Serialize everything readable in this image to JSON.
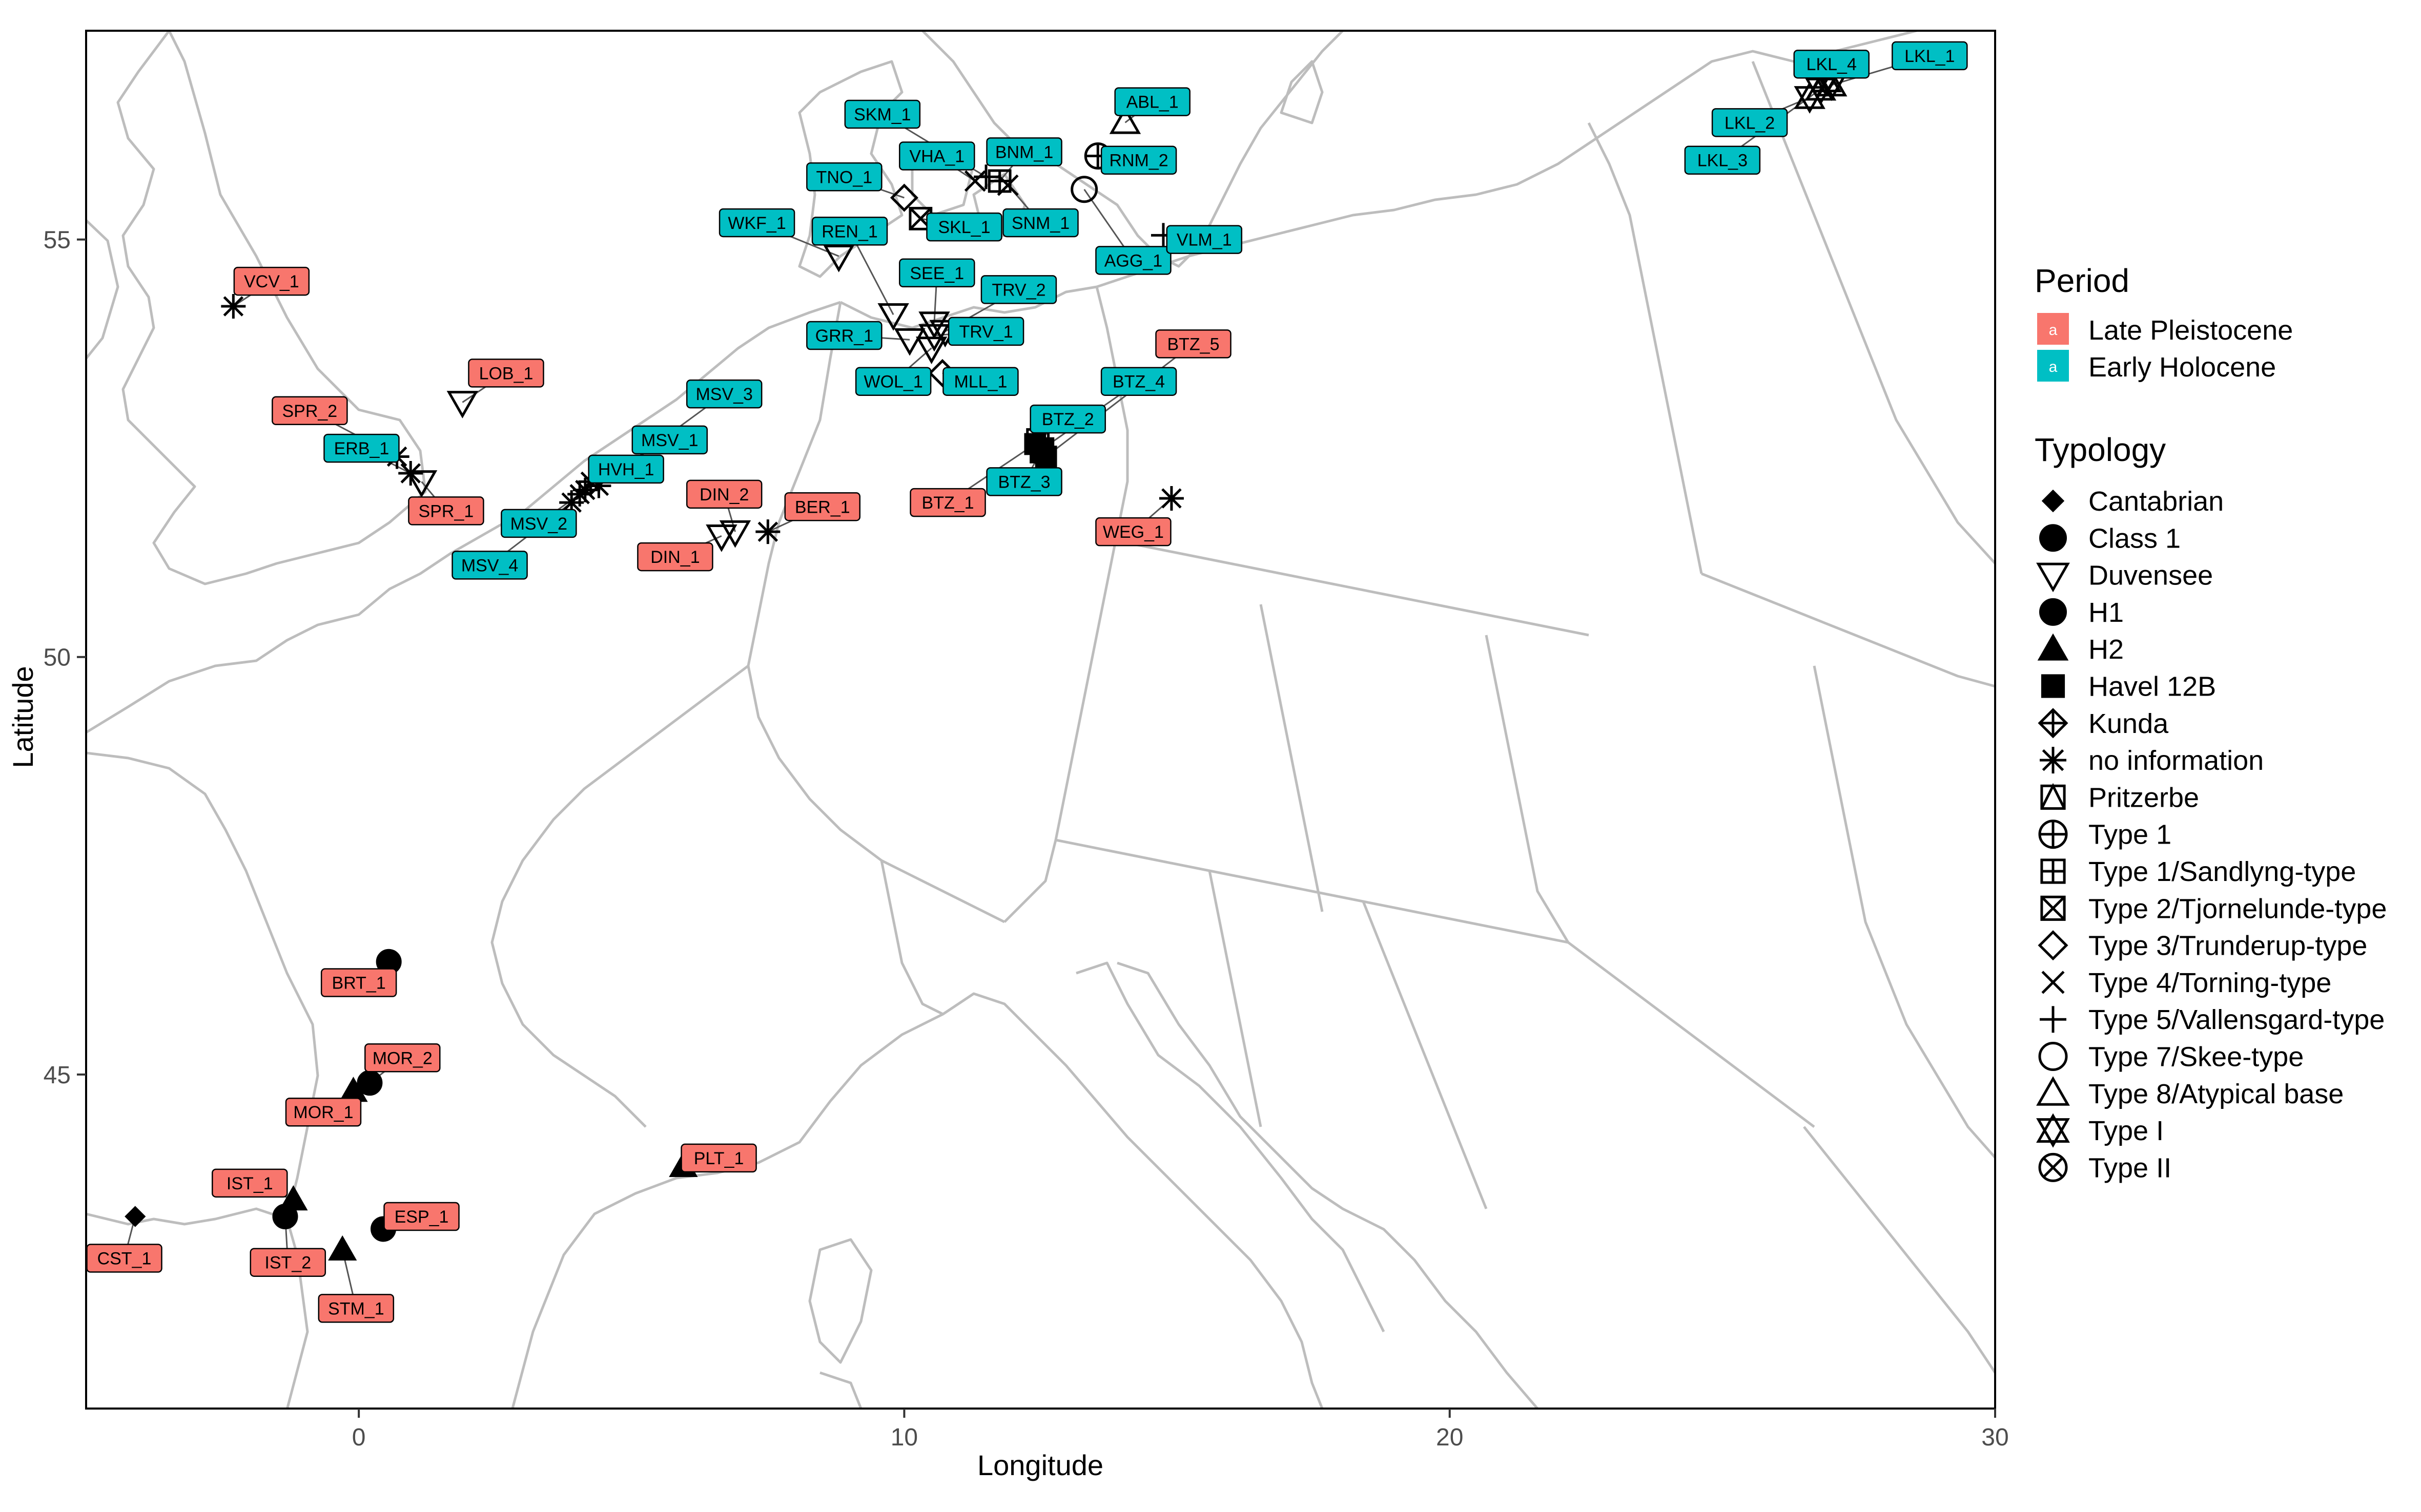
{
  "chart_data": {
    "type": "scatter",
    "xlabel": "Longitude",
    "ylabel": "Latitude",
    "xlim": [
      -5,
      30
    ],
    "ylim": [
      41,
      57.5
    ],
    "xticks": [
      0,
      10,
      20,
      30
    ],
    "yticks": [
      45,
      50,
      55
    ],
    "grid": false,
    "legend_position": "right",
    "periods": [
      {
        "name": "Late Pleistocene",
        "color": "#F8766D",
        "key_letter": "a"
      },
      {
        "name": "Early Holocene",
        "color": "#00BFC4",
        "key_letter": "a"
      }
    ],
    "typology_title": "Typology",
    "period_title": "Period",
    "typologies": [
      {
        "name": "Cantabrian",
        "shape": "diamond-filled"
      },
      {
        "name": "Class 1",
        "shape": "circle-filled"
      },
      {
        "name": "Duvensee",
        "shape": "triangle-down-open"
      },
      {
        "name": "H1",
        "shape": "circle-filled"
      },
      {
        "name": "H2",
        "shape": "triangle-filled"
      },
      {
        "name": "Havel 12B",
        "shape": "square-filled"
      },
      {
        "name": "Kunda",
        "shape": "diamond-plus"
      },
      {
        "name": "no information",
        "shape": "asterisk"
      },
      {
        "name": "Pritzerbe",
        "shape": "square-triangle"
      },
      {
        "name": "Type 1",
        "shape": "circle-plus"
      },
      {
        "name": "Type 1/Sandlyng-type",
        "shape": "square-plus"
      },
      {
        "name": "Type 2/Tjornelunde-type",
        "shape": "square-cross"
      },
      {
        "name": "Type 3/Trunderup-type",
        "shape": "diamond-open"
      },
      {
        "name": "Type 4/Torning-type",
        "shape": "cross"
      },
      {
        "name": "Type 5/Vallensgard-type",
        "shape": "plus"
      },
      {
        "name": "Type 7/Skee-type",
        "shape": "circle-open"
      },
      {
        "name": "Type 8/Atypical base",
        "shape": "triangle-open"
      },
      {
        "name": "Type I",
        "shape": "star-of-david"
      },
      {
        "name": "Type II",
        "shape": "circle-cross"
      }
    ],
    "sites": [
      {
        "label": "CST_1",
        "period": "Late Pleistocene",
        "typology": "Cantabrian",
        "lon": -4.1,
        "lat": 43.3,
        "label_lon": -4.3,
        "label_lat": 42.8
      },
      {
        "label": "IST_1",
        "period": "Late Pleistocene",
        "typology": "H2",
        "lon": -1.2,
        "lat": 43.5,
        "label_lon": -2.0,
        "label_lat": 43.7
      },
      {
        "label": "IST_2",
        "period": "Late Pleistocene",
        "typology": "H1",
        "lon": -1.35,
        "lat": 43.3,
        "label_lon": -1.3,
        "label_lat": 42.75
      },
      {
        "label": "STM_1",
        "period": "Late Pleistocene",
        "typology": "H2",
        "lon": -0.3,
        "lat": 42.9,
        "label_lon": -0.05,
        "label_lat": 42.2
      },
      {
        "label": "ESP_1",
        "period": "Late Pleistocene",
        "typology": "H1",
        "lon": 0.45,
        "lat": 43.15,
        "label_lon": 1.15,
        "label_lat": 43.3
      },
      {
        "label": "MOR_1",
        "period": "Late Pleistocene",
        "typology": "H2",
        "lon": -0.1,
        "lat": 44.8,
        "label_lon": -0.65,
        "label_lat": 44.55
      },
      {
        "label": "MOR_2",
        "period": "Late Pleistocene",
        "typology": "H1",
        "lon": 0.2,
        "lat": 44.9,
        "label_lon": 0.8,
        "label_lat": 45.2
      },
      {
        "label": "BRT_1",
        "period": "Late Pleistocene",
        "typology": "Class 1",
        "lon": 0.55,
        "lat": 46.35,
        "label_lon": 0.0,
        "label_lat": 46.1
      },
      {
        "label": "PLT_1",
        "period": "Late Pleistocene",
        "typology": "H2",
        "lon": 5.95,
        "lat": 43.9,
        "label_lon": 6.6,
        "label_lat": 44.0
      },
      {
        "label": "VCV_1",
        "period": "Late Pleistocene",
        "typology": "no information",
        "lon": -2.3,
        "lat": 54.2,
        "label_lon": -1.6,
        "label_lat": 54.5
      },
      {
        "label": "LOB_1",
        "period": "Late Pleistocene",
        "typology": "Duvensee",
        "lon": 1.9,
        "lat": 53.05,
        "label_lon": 2.7,
        "label_lat": 53.4
      },
      {
        "label": "SPR_2",
        "period": "Late Pleistocene",
        "typology": "no information",
        "lon": 0.7,
        "lat": 52.4,
        "label_lon": -0.9,
        "label_lat": 52.95
      },
      {
        "label": "SPR_1",
        "period": "Late Pleistocene",
        "typology": "Duvensee",
        "lon": 1.15,
        "lat": 52.1,
        "label_lon": 1.6,
        "label_lat": 51.75
      },
      {
        "label": "DIN_2",
        "period": "Late Pleistocene",
        "typology": "Duvensee",
        "lon": 6.9,
        "lat": 51.5,
        "label_lon": 6.7,
        "label_lat": 51.95
      },
      {
        "label": "DIN_1",
        "period": "Late Pleistocene",
        "typology": "Duvensee",
        "lon": 6.65,
        "lat": 51.45,
        "label_lon": 5.8,
        "label_lat": 51.2
      },
      {
        "label": "BER_1",
        "period": "Late Pleistocene",
        "typology": "no information",
        "lon": 7.5,
        "lat": 51.5,
        "label_lon": 8.5,
        "label_lat": 51.8
      },
      {
        "label": "BTZ_1",
        "period": "Late Pleistocene",
        "typology": "Havel 12B",
        "lon": 12.4,
        "lat": 52.55,
        "label_lon": 10.8,
        "label_lat": 51.85
      },
      {
        "label": "BTZ_5",
        "period": "Late Pleistocene",
        "typology": "Havel 12B",
        "lon": 12.6,
        "lat": 52.4,
        "label_lon": 15.3,
        "label_lat": 53.75
      },
      {
        "label": "WEG_1",
        "period": "Late Pleistocene",
        "typology": "no information",
        "lon": 14.9,
        "lat": 51.9,
        "label_lon": 14.2,
        "label_lat": 51.5
      },
      {
        "label": "ERB_1",
        "period": "Early Holocene",
        "typology": "no information",
        "lon": 0.95,
        "lat": 52.2,
        "label_lon": 0.05,
        "label_lat": 52.5
      },
      {
        "label": "MSV_1",
        "period": "Early Holocene",
        "typology": "no information",
        "lon": 4.25,
        "lat": 52.1,
        "label_lon": 5.7,
        "label_lat": 52.6
      },
      {
        "label": "MSV_2",
        "period": "Early Holocene",
        "typology": "no information",
        "lon": 4.05,
        "lat": 51.95,
        "label_lon": 3.3,
        "label_lat": 51.6
      },
      {
        "label": "MSV_3",
        "period": "Early Holocene",
        "typology": "no information",
        "lon": 4.4,
        "lat": 52.05,
        "label_lon": 6.7,
        "label_lat": 53.15
      },
      {
        "label": "MSV_4",
        "period": "Early Holocene",
        "typology": "no information",
        "lon": 3.9,
        "lat": 51.85,
        "label_lon": 2.4,
        "label_lat": 51.1
      },
      {
        "label": "HVH_1",
        "period": "Early Holocene",
        "typology": "no information",
        "lon": 4.15,
        "lat": 52.0,
        "label_lon": 4.9,
        "label_lat": 52.25
      },
      {
        "label": "WKF_1",
        "period": "Early Holocene",
        "typology": "Duvensee",
        "lon": 8.8,
        "lat": 54.8,
        "label_lon": 7.3,
        "label_lat": 55.2
      },
      {
        "label": "REN_1",
        "period": "Early Holocene",
        "typology": "Duvensee",
        "lon": 9.8,
        "lat": 54.1,
        "label_lon": 9.0,
        "label_lat": 55.1
      },
      {
        "label": "GRR_1",
        "period": "Early Holocene",
        "typology": "Duvensee",
        "lon": 10.1,
        "lat": 53.8,
        "label_lon": 8.9,
        "label_lat": 53.85
      },
      {
        "label": "WOL_1",
        "period": "Early Holocene",
        "typology": "Duvensee",
        "lon": 10.5,
        "lat": 53.7,
        "label_lon": 9.8,
        "label_lat": 53.3
      },
      {
        "label": "MLL_1",
        "period": "Early Holocene",
        "typology": "Type 3/Trunderup-type",
        "lon": 10.7,
        "lat": 53.4,
        "label_lon": 11.4,
        "label_lat": 53.3
      },
      {
        "label": "TRV_1",
        "period": "Early Holocene",
        "typology": "Duvensee",
        "lon": 10.55,
        "lat": 53.85,
        "label_lon": 11.5,
        "label_lat": 53.9
      },
      {
        "label": "TRV_2",
        "period": "Early Holocene",
        "typology": "Duvensee",
        "lon": 10.75,
        "lat": 53.9,
        "label_lon": 12.1,
        "label_lat": 54.4
      },
      {
        "label": "SEE_1",
        "period": "Early Holocene",
        "typology": "Duvensee",
        "lon": 10.55,
        "lat": 54.0,
        "label_lon": 10.6,
        "label_lat": 54.6
      },
      {
        "label": "TNO_1",
        "period": "Early Holocene",
        "typology": "Type 3/Trunderup-type",
        "lon": 10.0,
        "lat": 55.5,
        "label_lon": 8.9,
        "label_lat": 55.75
      },
      {
        "label": "SKL_1",
        "period": "Early Holocene",
        "typology": "Type 2/Tjornelunde-type",
        "lon": 10.3,
        "lat": 55.25,
        "label_lon": 11.1,
        "label_lat": 55.15
      },
      {
        "label": "VHA_1",
        "period": "Early Holocene",
        "typology": "Type 4/Torning-type",
        "lon": 11.3,
        "lat": 55.7,
        "label_lon": 10.6,
        "label_lat": 56.0
      },
      {
        "label": "SKM_1",
        "period": "Early Holocene",
        "typology": "Type 5/Vallensgard-type",
        "lon": 11.5,
        "lat": 55.75,
        "label_lon": 9.6,
        "label_lat": 56.5
      },
      {
        "label": "BNM_1",
        "period": "Early Holocene",
        "typology": "Type 1/Sandlyng-type",
        "lon": 11.75,
        "lat": 55.7,
        "label_lon": 12.2,
        "label_lat": 56.05
      },
      {
        "label": "SNM_1",
        "period": "Early Holocene",
        "typology": "Type 4/Torning-type",
        "lon": 11.9,
        "lat": 55.65,
        "label_lon": 12.5,
        "label_lat": 55.2
      },
      {
        "label": "RNM_2",
        "period": "Early Holocene",
        "typology": "Type 1",
        "lon": 13.55,
        "lat": 56.0,
        "label_lon": 14.3,
        "label_lat": 55.95
      },
      {
        "label": "ABL_1",
        "period": "Early Holocene",
        "typology": "Type 8/Atypical base",
        "lon": 14.05,
        "lat": 56.4,
        "label_lon": 14.55,
        "label_lat": 56.65
      },
      {
        "label": "AGG_1",
        "period": "Early Holocene",
        "typology": "Type 7/Skee-type",
        "lon": 13.3,
        "lat": 55.6,
        "label_lon": 14.2,
        "label_lat": 54.75
      },
      {
        "label": "VLM_1",
        "period": "Early Holocene",
        "typology": "Type 5/Vallensgard-type",
        "lon": 14.75,
        "lat": 55.05,
        "label_lon": 15.5,
        "label_lat": 55.0
      },
      {
        "label": "BTZ_2",
        "period": "Early Holocene",
        "typology": "Pritzerbe",
        "lon": 12.45,
        "lat": 52.6,
        "label_lon": 13.0,
        "label_lat": 52.85
      },
      {
        "label": "BTZ_3",
        "period": "Early Holocene",
        "typology": "Havel 12B",
        "lon": 12.5,
        "lat": 52.45,
        "label_lon": 12.2,
        "label_lat": 52.1
      },
      {
        "label": "BTZ_4",
        "period": "Early Holocene",
        "typology": "Havel 12B",
        "lon": 12.55,
        "lat": 52.5,
        "label_lon": 14.3,
        "label_lat": 53.3
      },
      {
        "label": "LKL_1",
        "period": "Early Holocene",
        "typology": "Type I",
        "lon": 27.0,
        "lat": 56.85,
        "label_lon": 28.8,
        "label_lat": 57.2
      },
      {
        "label": "LKL_2",
        "period": "Early Holocene",
        "typology": "Type I",
        "lon": 26.6,
        "lat": 56.7,
        "label_lon": 25.5,
        "label_lat": 56.4
      },
      {
        "label": "LKL_3",
        "period": "Early Holocene",
        "typology": "Type I",
        "lon": 26.8,
        "lat": 56.8,
        "label_lon": 25.0,
        "label_lat": 55.95
      },
      {
        "label": "LKL_4",
        "period": "Early Holocene",
        "typology": "Type I",
        "lon": 26.9,
        "lat": 56.9,
        "label_lon": 27.0,
        "label_lat": 57.1
      }
    ]
  }
}
